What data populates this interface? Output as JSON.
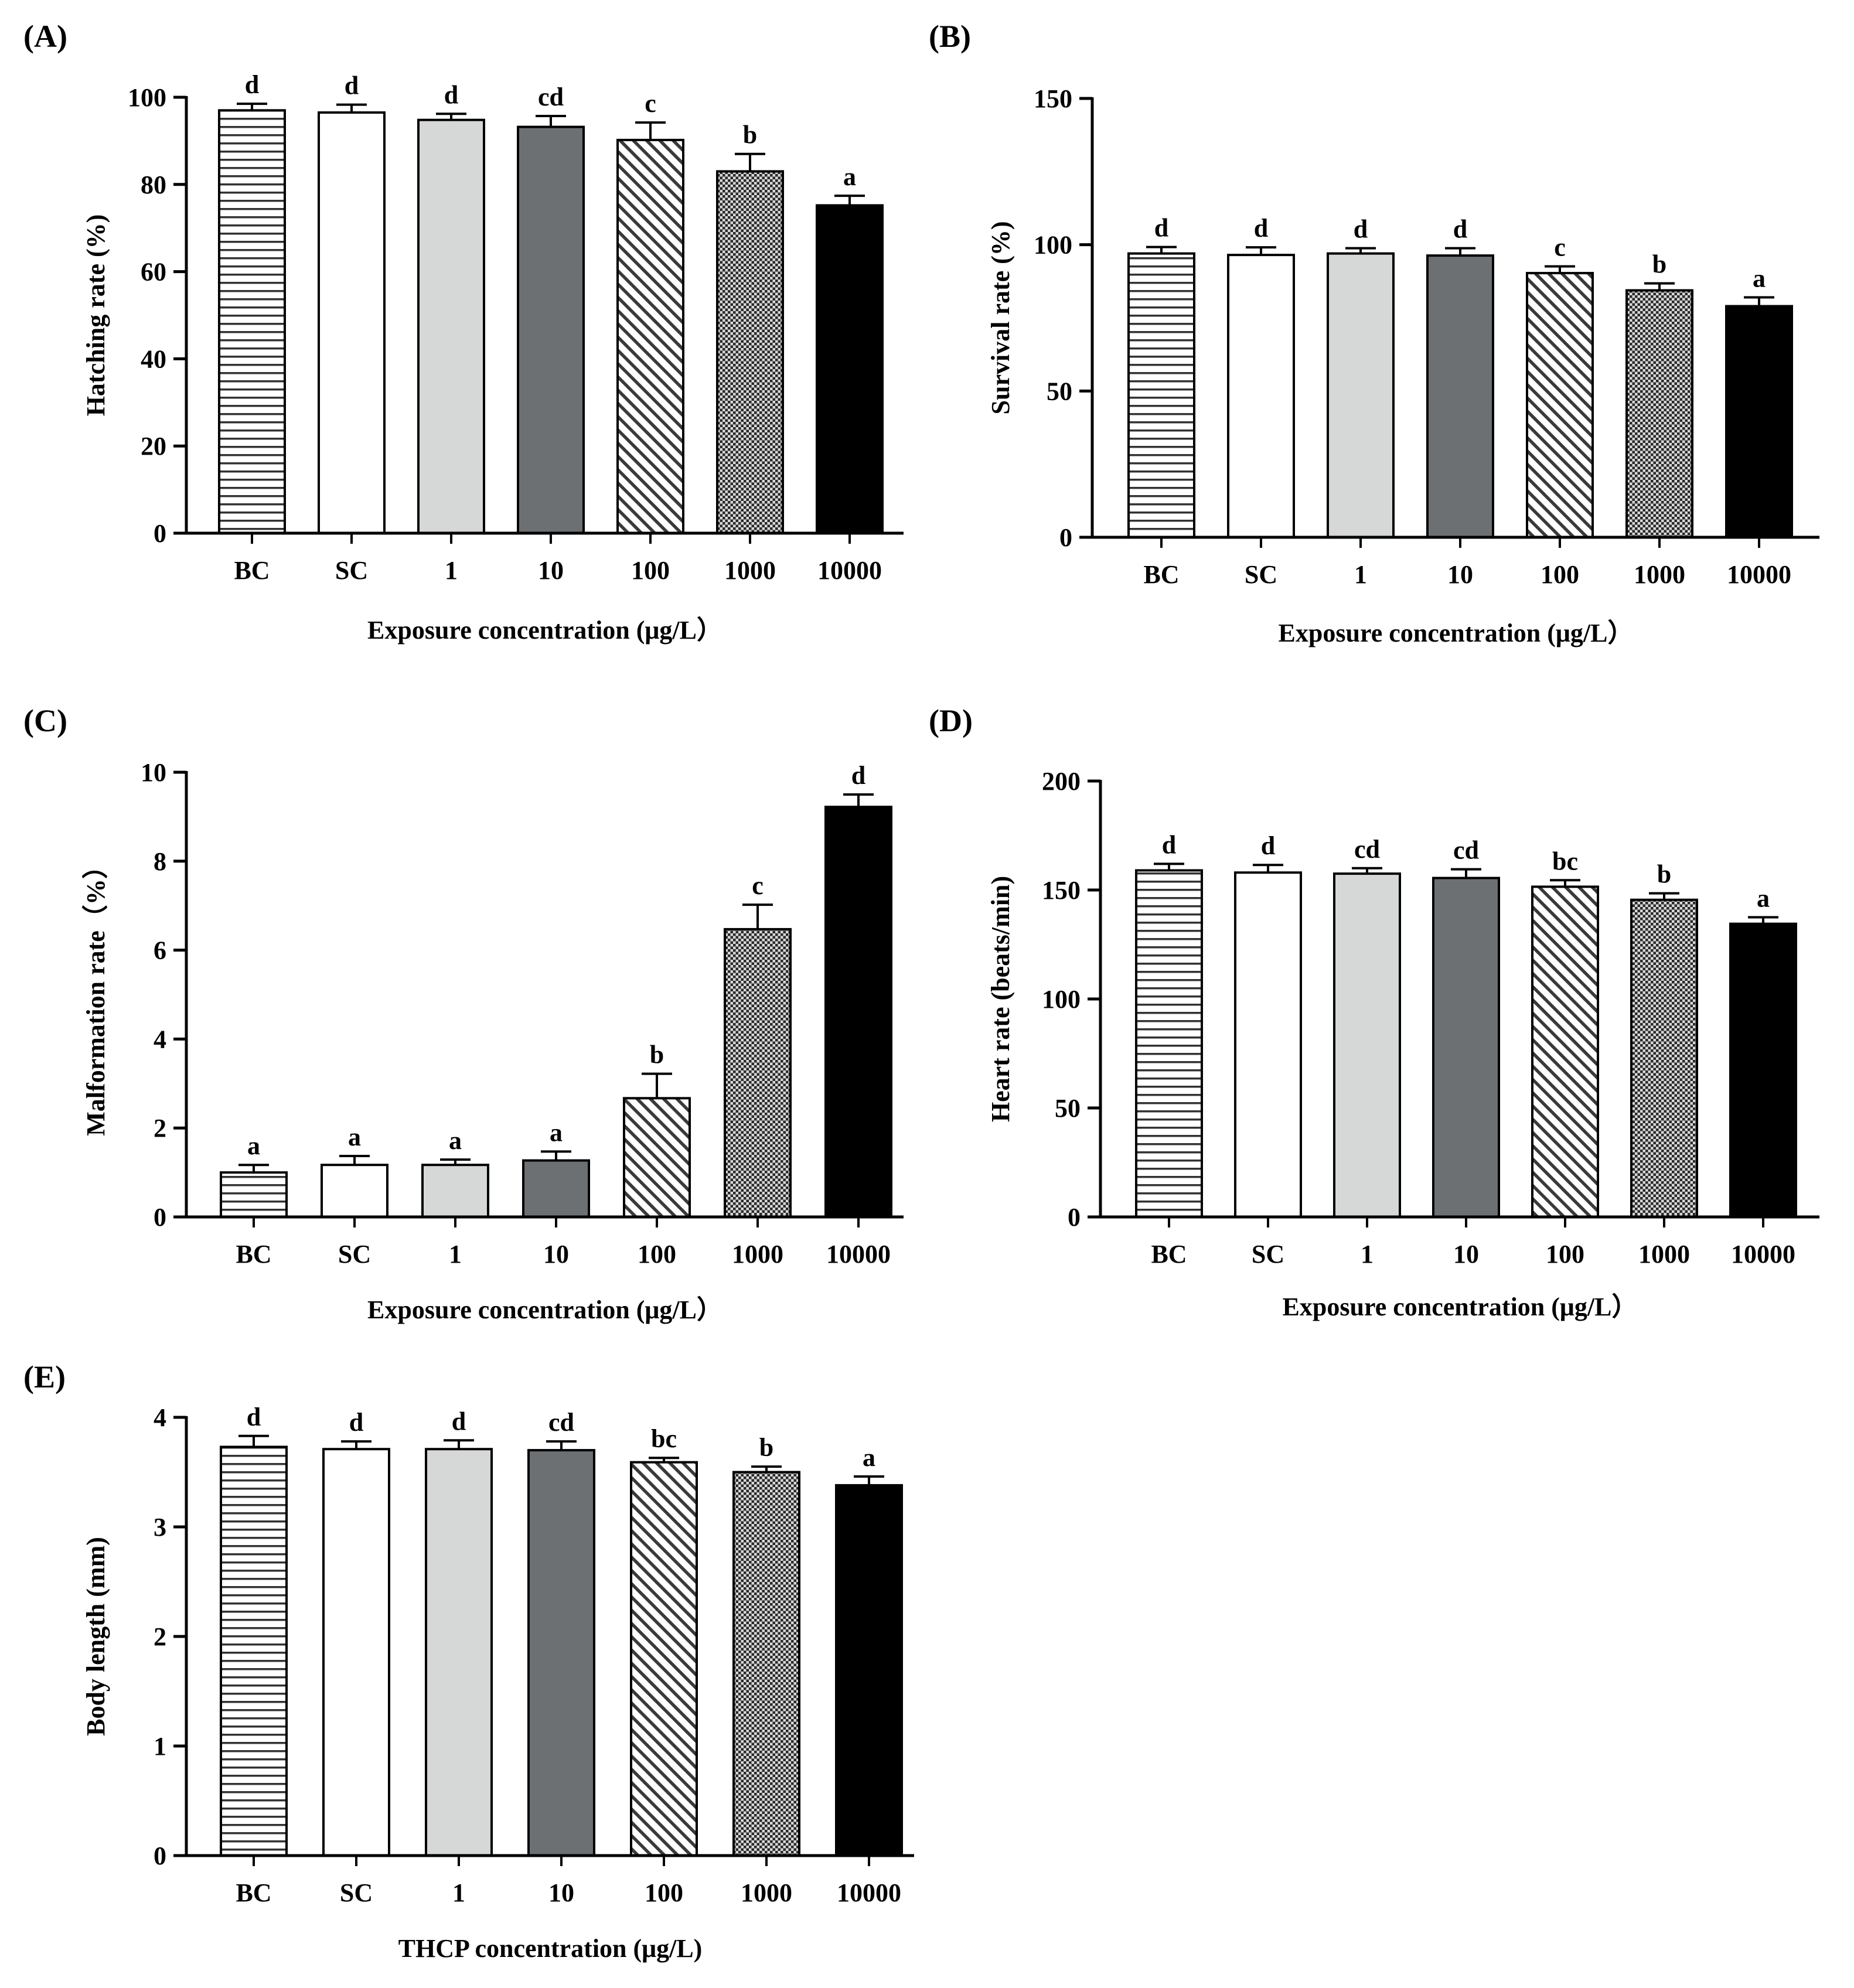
{
  "figure": {
    "patterns": [
      "horizontal-lines",
      "white",
      "light-gray",
      "dark-gray",
      "diagonal-lines",
      "crosshatch",
      "black"
    ],
    "colors": {
      "axis": "#000000",
      "light_gray": "#d5d8d7",
      "dark_gray": "#6d7072",
      "black": "#000000",
      "white": "#ffffff"
    }
  },
  "chart_data": [
    {
      "panel": "(A)",
      "type": "bar",
      "categories": [
        "BC",
        "SC",
        "1",
        "10",
        "100",
        "1000",
        "10000"
      ],
      "values": [
        97,
        96.5,
        94.8,
        93.2,
        90.2,
        83,
        75.2
      ],
      "errors": [
        1.5,
        1.8,
        1.4,
        2.5,
        4,
        4,
        2.2
      ],
      "significance": [
        "d",
        "d",
        "d",
        "cd",
        "c",
        "b",
        "a"
      ],
      "ylabel": "Hatching rate (%)",
      "xlabel": "Exposure  concentration (μg/L）",
      "ylim": [
        0,
        100
      ],
      "yticks": [
        0,
        20,
        40,
        60,
        80,
        100
      ]
    },
    {
      "panel": "(B)",
      "type": "bar",
      "categories": [
        "BC",
        "SC",
        "1",
        "10",
        "100",
        "1000",
        "10000"
      ],
      "values": [
        97,
        96.5,
        97,
        96.3,
        90.3,
        84.4,
        79
      ],
      "errors": [
        2.2,
        2.6,
        1.8,
        2.5,
        2.3,
        2.4,
        3
      ],
      "significance": [
        "d",
        "d",
        "d",
        "d",
        "c",
        "b",
        "a"
      ],
      "ylabel": "Survival rate (%)",
      "xlabel": "Exposure  concentration (μg/L）",
      "ylim": [
        0,
        150
      ],
      "yticks": [
        0,
        50,
        100,
        150
      ]
    },
    {
      "panel": "(C)",
      "type": "bar",
      "categories": [
        "BC",
        "SC",
        "1",
        "10",
        "100",
        "1000",
        "10000"
      ],
      "values": [
        1,
        1.17,
        1.17,
        1.27,
        2.67,
        6.47,
        9.22
      ],
      "errors": [
        0.17,
        0.2,
        0.12,
        0.2,
        0.55,
        0.55,
        0.28
      ],
      "significance": [
        "a",
        "a",
        "a",
        "a",
        "b",
        "c",
        "d"
      ],
      "ylabel": "Malformation rate（%）",
      "xlabel": "Exposure  concentration (μg/L）",
      "ylim": [
        0,
        10
      ],
      "yticks": [
        0,
        2,
        4,
        6,
        8,
        10
      ]
    },
    {
      "panel": "(D)",
      "type": "bar",
      "categories": [
        "BC",
        "SC",
        "1",
        "10",
        "100",
        "1000",
        "10000"
      ],
      "values": [
        159,
        158,
        157.5,
        155.5,
        151.5,
        145.5,
        134.5
      ],
      "errors": [
        3,
        3.5,
        2.5,
        4,
        3,
        3,
        3
      ],
      "significance": [
        "d",
        "d",
        "cd",
        "cd",
        "bc",
        "b",
        "a"
      ],
      "ylabel": "Heart rate (beats/min)",
      "xlabel": "Exposure  concentration (μg/L）",
      "ylim": [
        0,
        200
      ],
      "yticks": [
        0,
        50,
        100,
        150,
        200
      ]
    },
    {
      "panel": "(E)",
      "type": "bar",
      "categories": [
        "BC",
        "SC",
        "1",
        "10",
        "100",
        "1000",
        "10000"
      ],
      "values": [
        3.73,
        3.71,
        3.71,
        3.7,
        3.59,
        3.5,
        3.38
      ],
      "errors": [
        0.1,
        0.07,
        0.08,
        0.08,
        0.04,
        0.05,
        0.08
      ],
      "significance": [
        "d",
        "d",
        "d",
        "cd",
        "bc",
        "b",
        "a"
      ],
      "ylabel": "Body length (mm)",
      "xlabel": "THCP concentration (μg/L)",
      "ylim": [
        0,
        4
      ],
      "yticks": [
        0,
        1,
        2,
        3,
        4
      ]
    }
  ]
}
